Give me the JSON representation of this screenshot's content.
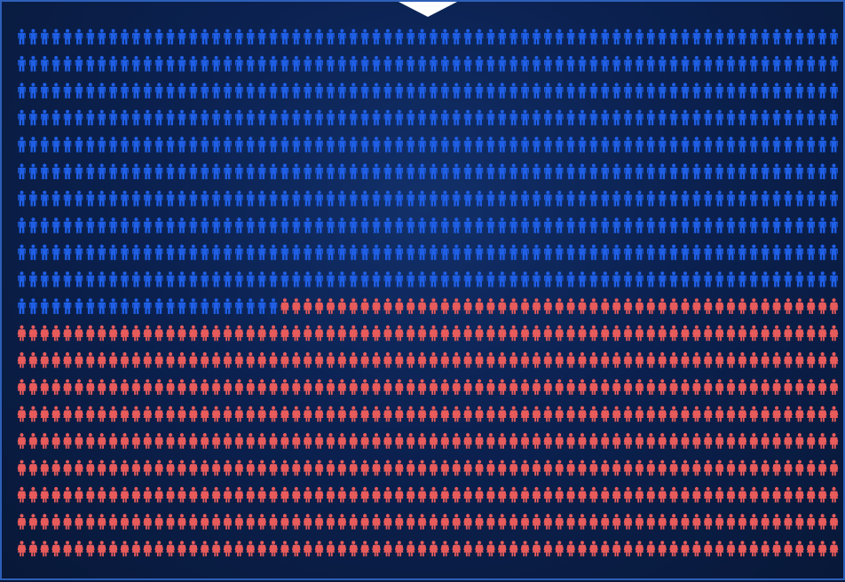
{
  "chart_data": {
    "type": "pictogram",
    "columns": 72,
    "rows": 20,
    "series": [
      {
        "icon": "male-person-icon",
        "count": 743,
        "color": "#1f5fe6"
      },
      {
        "icon": "female-person-icon",
        "count": 697,
        "color": "#e85b5b"
      }
    ]
  }
}
